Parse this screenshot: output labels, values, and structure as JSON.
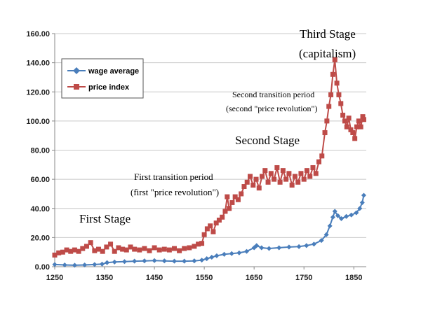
{
  "chart_data": {
    "type": "line",
    "title": "",
    "xlabel": "",
    "ylabel": "",
    "xlim": [
      1250,
      1875
    ],
    "ylim": [
      0,
      160
    ],
    "x_ticks": [
      1250,
      1350,
      1450,
      1550,
      1650,
      1750,
      1850
    ],
    "y_ticks": [
      "0.00",
      "20.00",
      "40.00",
      "60.00",
      "80.00",
      "100.00",
      "120.00",
      "140.00",
      "160.00"
    ],
    "grid": "horizontal",
    "legend": {
      "placement": "top-left",
      "entries": [
        "wage average",
        "price index"
      ]
    },
    "series": [
      {
        "name": "wage average",
        "color": "#4a7ebb",
        "marker": "diamond",
        "points": [
          [
            1250,
            1.5
          ],
          [
            1270,
            1.2
          ],
          [
            1290,
            1.0
          ],
          [
            1310,
            1.2
          ],
          [
            1330,
            1.5
          ],
          [
            1345,
            1.8
          ],
          [
            1355,
            2.8
          ],
          [
            1370,
            3.2
          ],
          [
            1390,
            3.5
          ],
          [
            1410,
            3.8
          ],
          [
            1430,
            4.0
          ],
          [
            1450,
            4.2
          ],
          [
            1470,
            4.0
          ],
          [
            1490,
            3.8
          ],
          [
            1510,
            3.8
          ],
          [
            1530,
            4.0
          ],
          [
            1545,
            4.5
          ],
          [
            1555,
            5.5
          ],
          [
            1565,
            6.5
          ],
          [
            1575,
            7.5
          ],
          [
            1590,
            8.5
          ],
          [
            1605,
            9.0
          ],
          [
            1620,
            9.5
          ],
          [
            1635,
            10.5
          ],
          [
            1650,
            13.0
          ],
          [
            1655,
            14.5
          ],
          [
            1665,
            13.0
          ],
          [
            1680,
            12.5
          ],
          [
            1700,
            13.0
          ],
          [
            1720,
            13.5
          ],
          [
            1740,
            13.8
          ],
          [
            1755,
            14.5
          ],
          [
            1770,
            15.5
          ],
          [
            1785,
            18.0
          ],
          [
            1795,
            22.0
          ],
          [
            1802,
            28.0
          ],
          [
            1808,
            34.0
          ],
          [
            1812,
            38.0
          ],
          [
            1818,
            35.0
          ],
          [
            1825,
            33.0
          ],
          [
            1835,
            34.5
          ],
          [
            1845,
            35.5
          ],
          [
            1855,
            37.0
          ],
          [
            1862,
            40.0
          ],
          [
            1867,
            44.0
          ],
          [
            1870,
            49.0
          ]
        ]
      },
      {
        "name": "price index",
        "color": "#be4b48",
        "marker": "square",
        "points": [
          [
            1250,
            8.0
          ],
          [
            1258,
            9.5
          ],
          [
            1266,
            10.0
          ],
          [
            1274,
            11.5
          ],
          [
            1282,
            10.5
          ],
          [
            1290,
            11.5
          ],
          [
            1298,
            10.5
          ],
          [
            1306,
            12.5
          ],
          [
            1314,
            14.0
          ],
          [
            1322,
            16.5
          ],
          [
            1330,
            11.0
          ],
          [
            1338,
            12.0
          ],
          [
            1346,
            10.5
          ],
          [
            1354,
            13.5
          ],
          [
            1362,
            15.5
          ],
          [
            1370,
            10.5
          ],
          [
            1378,
            13.0
          ],
          [
            1386,
            12.0
          ],
          [
            1394,
            11.5
          ],
          [
            1402,
            13.5
          ],
          [
            1410,
            12.0
          ],
          [
            1420,
            11.5
          ],
          [
            1430,
            12.5
          ],
          [
            1440,
            11.0
          ],
          [
            1450,
            13.0
          ],
          [
            1460,
            11.5
          ],
          [
            1470,
            12.0
          ],
          [
            1480,
            11.5
          ],
          [
            1490,
            12.5
          ],
          [
            1500,
            11.0
          ],
          [
            1510,
            12.5
          ],
          [
            1520,
            13.0
          ],
          [
            1530,
            14.0
          ],
          [
            1538,
            15.5
          ],
          [
            1545,
            16.0
          ],
          [
            1550,
            22.0
          ],
          [
            1556,
            26.0
          ],
          [
            1562,
            28.0
          ],
          [
            1568,
            24.0
          ],
          [
            1574,
            30.0
          ],
          [
            1580,
            32.0
          ],
          [
            1586,
            34.0
          ],
          [
            1592,
            38.0
          ],
          [
            1596,
            48.0
          ],
          [
            1600,
            40.0
          ],
          [
            1606,
            44.0
          ],
          [
            1612,
            48.0
          ],
          [
            1618,
            46.0
          ],
          [
            1624,
            50.0
          ],
          [
            1630,
            55.0
          ],
          [
            1636,
            58.0
          ],
          [
            1642,
            62.0
          ],
          [
            1648,
            56.0
          ],
          [
            1654,
            60.0
          ],
          [
            1660,
            54.0
          ],
          [
            1666,
            62.0
          ],
          [
            1672,
            66.0
          ],
          [
            1678,
            58.0
          ],
          [
            1684,
            64.0
          ],
          [
            1690,
            60.0
          ],
          [
            1696,
            68.0
          ],
          [
            1702,
            58.0
          ],
          [
            1708,
            66.0
          ],
          [
            1714,
            60.0
          ],
          [
            1720,
            64.0
          ],
          [
            1726,
            56.0
          ],
          [
            1732,
            62.0
          ],
          [
            1738,
            58.0
          ],
          [
            1744,
            64.0
          ],
          [
            1750,
            60.0
          ],
          [
            1756,
            66.0
          ],
          [
            1762,
            62.0
          ],
          [
            1768,
            68.0
          ],
          [
            1774,
            64.0
          ],
          [
            1780,
            72.0
          ],
          [
            1786,
            76.0
          ],
          [
            1792,
            92.0
          ],
          [
            1796,
            100.0
          ],
          [
            1800,
            110.0
          ],
          [
            1804,
            118.0
          ],
          [
            1808,
            132.0
          ],
          [
            1812,
            142.0
          ],
          [
            1816,
            126.0
          ],
          [
            1820,
            118.0
          ],
          [
            1824,
            112.0
          ],
          [
            1828,
            104.0
          ],
          [
            1832,
            100.0
          ],
          [
            1836,
            96.0
          ],
          [
            1840,
            102.0
          ],
          [
            1844,
            94.0
          ],
          [
            1848,
            92.0
          ],
          [
            1852,
            88.0
          ],
          [
            1856,
            96.0
          ],
          [
            1860,
            100.0
          ],
          [
            1864,
            96.0
          ],
          [
            1868,
            103.0
          ],
          [
            1870,
            101.0
          ]
        ]
      }
    ],
    "annotations": [
      {
        "text": "First Stage"
      },
      {
        "text": "First transition period"
      },
      {
        "text": "(first \"price revolution\")"
      },
      {
        "text": "Second Stage"
      },
      {
        "text": "Second transition period"
      },
      {
        "text": "(second \"price revolution\")"
      },
      {
        "text": "Third Stage"
      },
      {
        "text": "(capitalism)"
      }
    ]
  }
}
